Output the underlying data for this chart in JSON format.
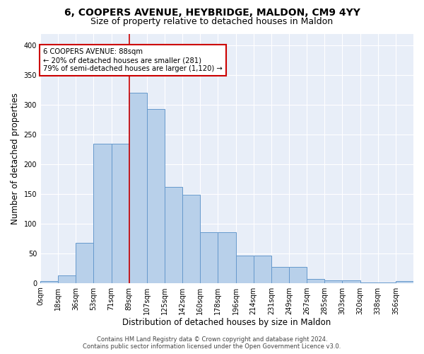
{
  "title1": "6, COOPERS AVENUE, HEYBRIDGE, MALDON, CM9 4YY",
  "title2": "Size of property relative to detached houses in Maldon",
  "xlabel": "Distribution of detached houses by size in Maldon",
  "ylabel": "Number of detached properties",
  "bin_labels": [
    "0sqm",
    "18sqm",
    "36sqm",
    "53sqm",
    "71sqm",
    "89sqm",
    "107sqm",
    "125sqm",
    "142sqm",
    "160sqm",
    "178sqm",
    "196sqm",
    "214sqm",
    "231sqm",
    "249sqm",
    "267sqm",
    "285sqm",
    "303sqm",
    "320sqm",
    "338sqm",
    "356sqm"
  ],
  "bar_values": [
    3,
    13,
    68,
    235,
    235,
    320,
    293,
    162,
    149,
    85,
    85,
    46,
    46,
    27,
    27,
    7,
    5,
    5,
    1,
    1,
    3
  ],
  "bar_color": "#b8d0ea",
  "bar_edge_color": "#6699cc",
  "annotation_text1": "6 COOPERS AVENUE: 88sqm",
  "annotation_text2": "← 20% of detached houses are smaller (281)",
  "annotation_text3": "79% of semi-detached houses are larger (1,120) →",
  "annotation_box_color": "white",
  "annotation_border_color": "#cc0000",
  "property_line_color": "#cc0000",
  "footer1": "Contains HM Land Registry data © Crown copyright and database right 2024.",
  "footer2": "Contains public sector information licensed under the Open Government Licence v3.0.",
  "ylim": [
    0,
    420
  ],
  "background_color": "#e8eef8",
  "title_fontsize": 10,
  "subtitle_fontsize": 9,
  "axis_label_fontsize": 8.5,
  "tick_fontsize": 7,
  "footer_fontsize": 6,
  "property_line_bar_index": 5
}
